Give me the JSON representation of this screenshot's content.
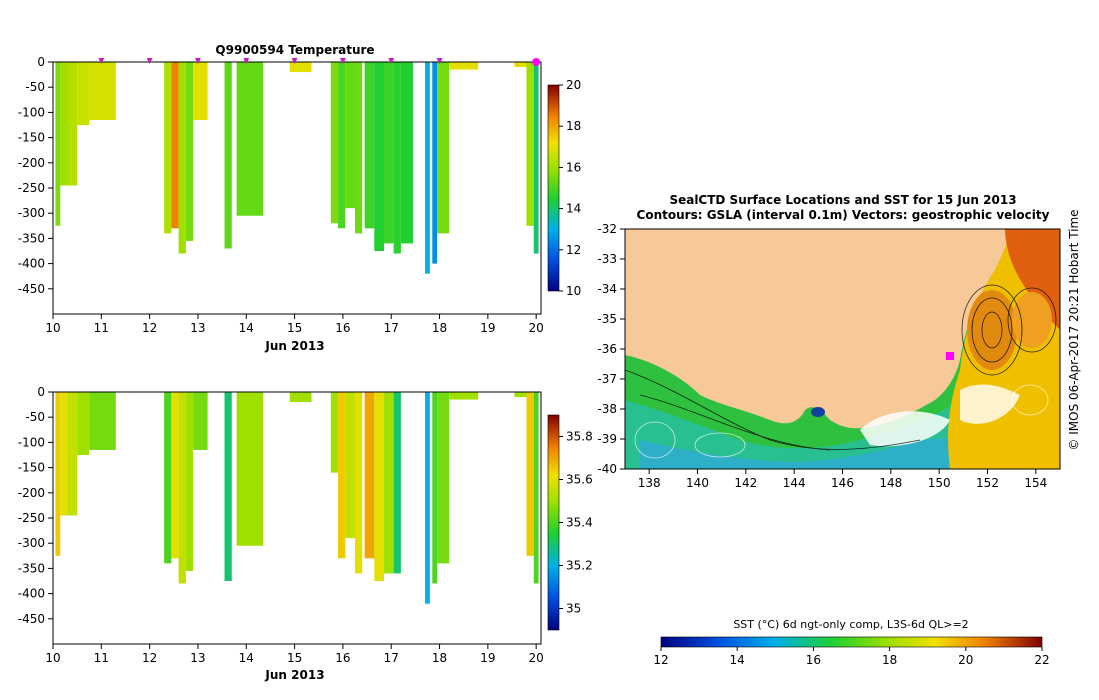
{
  "chart_data": [
    {
      "type": "heatmap",
      "name": "temperature-section",
      "title": "Q9900594  Temperature",
      "xlabel": "Jun 2013",
      "xticks": [
        10,
        11,
        12,
        13,
        14,
        15,
        16,
        17,
        18,
        19,
        20
      ],
      "xlim": [
        10,
        20.1
      ],
      "yticks": [
        0,
        -50,
        -100,
        -150,
        -200,
        -250,
        -300,
        -350,
        -400,
        -450
      ],
      "ylim": [
        -500,
        0
      ],
      "colorbar": {
        "min": 10,
        "max": 20,
        "ticks": [
          10,
          12,
          14,
          16,
          18,
          20
        ]
      },
      "profile_markers": [
        11,
        12,
        13,
        14,
        15,
        16,
        17,
        18
      ],
      "current_marker": 20,
      "profiles": [
        {
          "x0": 10.05,
          "x1": 10.15,
          "depth": 325,
          "value": 15.6
        },
        {
          "x0": 10.15,
          "x1": 10.3,
          "depth": 245,
          "value": 16.0
        },
        {
          "x0": 10.3,
          "x1": 10.5,
          "depth": 245,
          "value": 16.3
        },
        {
          "x0": 10.5,
          "x1": 10.75,
          "depth": 125,
          "value": 16.6
        },
        {
          "x0": 10.75,
          "x1": 11.3,
          "depth": 115,
          "value": 16.8
        },
        {
          "x0": 12.3,
          "x1": 12.45,
          "depth": 340,
          "value": 16.2
        },
        {
          "x0": 12.45,
          "x1": 12.6,
          "depth": 330,
          "value": 18.5
        },
        {
          "x0": 12.6,
          "x1": 12.75,
          "depth": 380,
          "value": 16.0
        },
        {
          "x0": 12.75,
          "x1": 12.9,
          "depth": 355,
          "value": 15.5
        },
        {
          "x0": 12.9,
          "x1": 13.2,
          "depth": 115,
          "value": 17.0
        },
        {
          "x0": 13.55,
          "x1": 13.7,
          "depth": 370,
          "value": 15.2
        },
        {
          "x0": 13.8,
          "x1": 14.35,
          "depth": 305,
          "value": 15.3
        },
        {
          "x0": 14.9,
          "x1": 15.35,
          "depth": 20,
          "value": 17.0
        },
        {
          "x0": 15.75,
          "x1": 15.9,
          "depth": 320,
          "value": 15.6
        },
        {
          "x0": 15.9,
          "x1": 16.05,
          "depth": 330,
          "value": 15.0
        },
        {
          "x0": 16.05,
          "x1": 16.25,
          "depth": 290,
          "value": 15.3
        },
        {
          "x0": 16.25,
          "x1": 16.4,
          "depth": 340,
          "value": 15.4
        },
        {
          "x0": 16.45,
          "x1": 16.65,
          "depth": 330,
          "value": 14.8
        },
        {
          "x0": 16.65,
          "x1": 16.85,
          "depth": 375,
          "value": 14.5
        },
        {
          "x0": 16.85,
          "x1": 17.05,
          "depth": 360,
          "value": 14.8
        },
        {
          "x0": 17.05,
          "x1": 17.2,
          "depth": 380,
          "value": 14.6
        },
        {
          "x0": 17.2,
          "x1": 17.45,
          "depth": 360,
          "value": 14.5
        },
        {
          "x0": 17.7,
          "x1": 17.8,
          "depth": 420,
          "value": 13.0
        },
        {
          "x0": 17.85,
          "x1": 17.95,
          "depth": 400,
          "value": 12.5
        },
        {
          "x0": 17.95,
          "x1": 18.2,
          "depth": 340,
          "value": 15.5
        },
        {
          "x0": 18.2,
          "x1": 18.8,
          "depth": 15,
          "value": 17.0
        },
        {
          "x0": 19.55,
          "x1": 19.8,
          "depth": 10,
          "value": 17.0
        },
        {
          "x0": 19.8,
          "x1": 19.95,
          "depth": 325,
          "value": 16.0
        },
        {
          "x0": 19.95,
          "x1": 20.05,
          "depth": 380,
          "value": 14.0
        }
      ]
    },
    {
      "type": "heatmap",
      "name": "salinity-section",
      "title": "",
      "xlabel": "Jun 2013",
      "xticks": [
        10,
        11,
        12,
        13,
        14,
        15,
        16,
        17,
        18,
        19,
        20
      ],
      "xlim": [
        10,
        20.1
      ],
      "yticks": [
        0,
        -50,
        -100,
        -150,
        -200,
        -250,
        -300,
        -350,
        -400,
        -450
      ],
      "ylim": [
        -500,
        0
      ],
      "colorbar": {
        "min": 34.9,
        "max": 35.9,
        "ticks": [
          35,
          35.2,
          35.4,
          35.6,
          35.8
        ]
      },
      "profiles": [
        {
          "x0": 10.05,
          "x1": 10.15,
          "depth": 325,
          "value": 35.65
        },
        {
          "x0": 10.15,
          "x1": 10.3,
          "depth": 245,
          "value": 35.6
        },
        {
          "x0": 10.3,
          "x1": 10.5,
          "depth": 245,
          "value": 35.55
        },
        {
          "x0": 10.5,
          "x1": 10.75,
          "depth": 125,
          "value": 35.5
        },
        {
          "x0": 10.75,
          "x1": 11.3,
          "depth": 115,
          "value": 35.45
        },
        {
          "x0": 12.3,
          "x1": 12.45,
          "depth": 340,
          "value": 35.4
        },
        {
          "x0": 12.45,
          "x1": 12.6,
          "depth": 330,
          "value": 35.6
        },
        {
          "x0": 12.6,
          "x1": 12.75,
          "depth": 380,
          "value": 35.55
        },
        {
          "x0": 12.75,
          "x1": 12.9,
          "depth": 355,
          "value": 35.5
        },
        {
          "x0": 12.9,
          "x1": 13.2,
          "depth": 115,
          "value": 35.45
        },
        {
          "x0": 13.55,
          "x1": 13.7,
          "depth": 375,
          "value": 35.3
        },
        {
          "x0": 13.8,
          "x1": 14.35,
          "depth": 305,
          "value": 35.5
        },
        {
          "x0": 14.9,
          "x1": 15.35,
          "depth": 20,
          "value": 35.5
        },
        {
          "x0": 15.75,
          "x1": 15.9,
          "depth": 160,
          "value": 35.5
        },
        {
          "x0": 15.9,
          "x1": 16.05,
          "depth": 330,
          "value": 35.65
        },
        {
          "x0": 16.05,
          "x1": 16.25,
          "depth": 290,
          "value": 35.55
        },
        {
          "x0": 16.25,
          "x1": 16.4,
          "depth": 360,
          "value": 35.6
        },
        {
          "x0": 16.45,
          "x1": 16.65,
          "depth": 330,
          "value": 35.7
        },
        {
          "x0": 16.65,
          "x1": 16.85,
          "depth": 375,
          "value": 35.6
        },
        {
          "x0": 16.85,
          "x1": 17.05,
          "depth": 360,
          "value": 35.5
        },
        {
          "x0": 17.05,
          "x1": 17.2,
          "depth": 360,
          "value": 35.3
        },
        {
          "x0": 17.7,
          "x1": 17.8,
          "depth": 420,
          "value": 35.2
        },
        {
          "x0": 17.85,
          "x1": 17.95,
          "depth": 380,
          "value": 35.4
        },
        {
          "x0": 17.95,
          "x1": 18.2,
          "depth": 340,
          "value": 35.45
        },
        {
          "x0": 18.2,
          "x1": 18.8,
          "depth": 15,
          "value": 35.5
        },
        {
          "x0": 19.55,
          "x1": 19.8,
          "depth": 10,
          "value": 35.5
        },
        {
          "x0": 19.8,
          "x1": 19.95,
          "depth": 325,
          "value": 35.65
        },
        {
          "x0": 19.95,
          "x1": 20.05,
          "depth": 380,
          "value": 35.4
        }
      ]
    },
    {
      "type": "heatmap",
      "name": "sst-map",
      "title_line1": "SealCTD Surface Locations and SST for 15 Jun 2013",
      "title_line2": "Contours: GSLA (interval 0.1m) Vectors: geostrophic velocity",
      "xticks": [
        138,
        140,
        142,
        144,
        146,
        148,
        150,
        152,
        154
      ],
      "xlim": [
        137,
        155
      ],
      "yticks": [
        -32,
        -33,
        -34,
        -35,
        -36,
        -37,
        -38,
        -39,
        -40
      ],
      "ylim": [
        -40,
        -32
      ],
      "colorbar": {
        "label": "SST (°C) 6d ngt-only comp, L3S-6d QL>=2",
        "min": 12,
        "max": 22,
        "ticks": [
          12,
          14,
          16,
          18,
          20,
          22
        ]
      },
      "seal_locations": [
        [
          150.2,
          -36.3
        ]
      ],
      "credit": "© IMOS 06-Apr-2017 20:21 Hobart Time"
    }
  ]
}
